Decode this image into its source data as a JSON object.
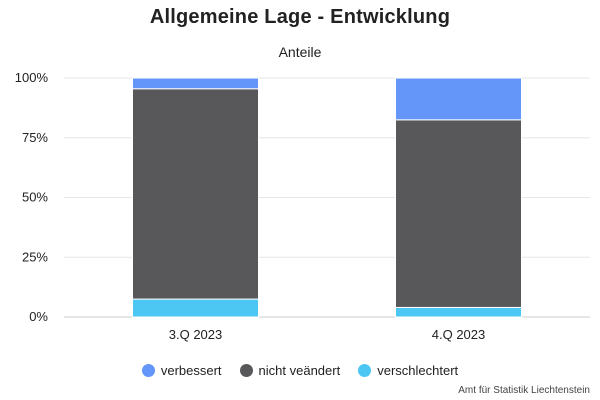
{
  "chart_data": {
    "type": "bar",
    "stacked": true,
    "normalized": true,
    "title": "Allgemeine Lage - Entwicklung",
    "subtitle": "Anteile",
    "categories": [
      "3.Q 2023",
      "4.Q 2023"
    ],
    "series": [
      {
        "name": "verschlechtert",
        "color": "#4cc7f4",
        "values": [
          7.5,
          4
        ]
      },
      {
        "name": "nicht veändert",
        "color": "#58585a",
        "values": [
          88,
          78.5
        ]
      },
      {
        "name": "verbessert",
        "color": "#6495f8",
        "values": [
          4.5,
          17.5
        ]
      }
    ],
    "legend_order": [
      "verbessert",
      "nicht veändert",
      "verschlechtert"
    ],
    "ylim": [
      0,
      100
    ],
    "yticks": [
      0,
      25,
      50,
      75,
      100
    ],
    "ytick_labels": [
      "0%",
      "25%",
      "50%",
      "75%",
      "100%"
    ],
    "grid": true,
    "legend_position": "bottom-center"
  },
  "source": "Amt für Statistik Liechtenstein"
}
